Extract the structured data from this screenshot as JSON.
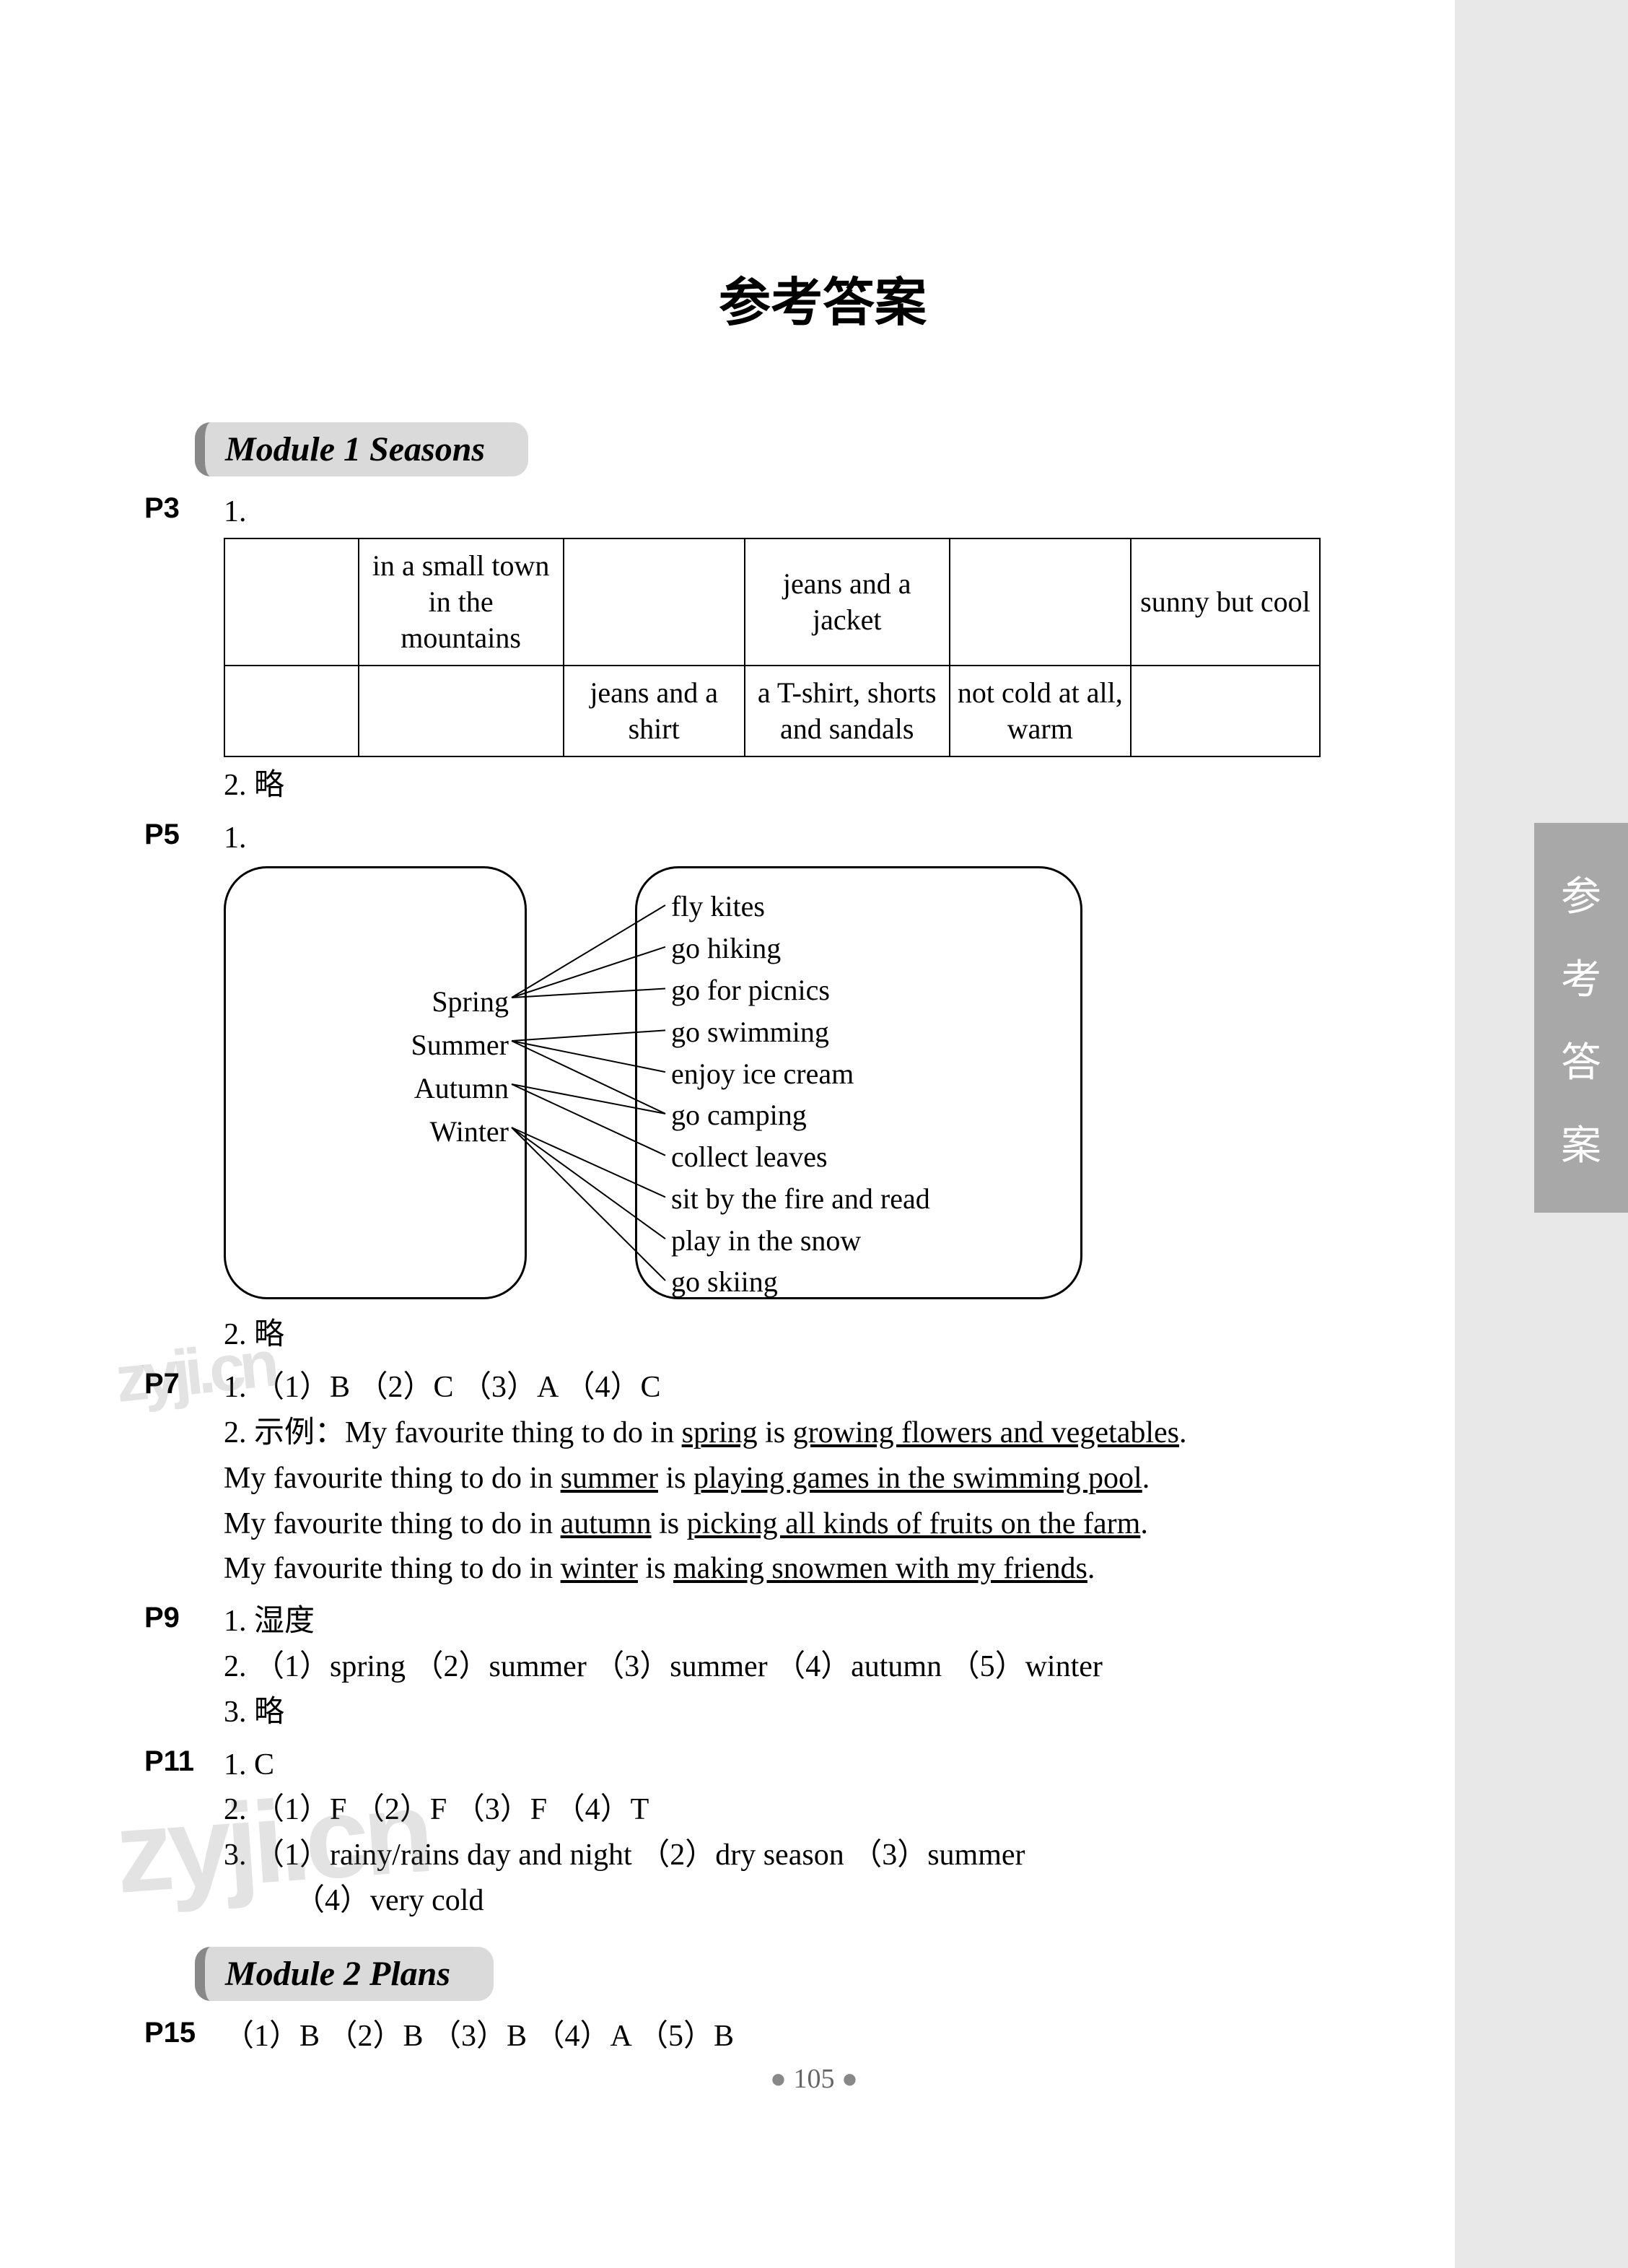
{
  "page_title": "参考答案",
  "side_tab": [
    "参",
    "考",
    "答",
    "案"
  ],
  "module1": {
    "header": "Module 1    Seasons",
    "p3": {
      "label": "P3",
      "q1_num": "1.",
      "table_row1": [
        "",
        "in a small town in the mountains",
        "",
        "jeans and a jacket",
        "",
        "sunny but cool"
      ],
      "table_row2": [
        "",
        "",
        "jeans and a shirt",
        "a T-shirt, shorts and sandals",
        "not cold at all, warm",
        ""
      ],
      "q2": "2.  略"
    },
    "p5": {
      "label": "P5",
      "q1_num": "1.",
      "left_items": [
        "Spring",
        "Summer",
        "Autumn",
        "Winter"
      ],
      "right_items": [
        "fly kites",
        "go hiking",
        "go for picnics",
        "go swimming",
        "enjoy ice cream",
        "go camping",
        "collect leaves",
        "sit by the fire and read",
        "play in the snow",
        "go skiing"
      ],
      "edges": [
        [
          0,
          0
        ],
        [
          0,
          1
        ],
        [
          0,
          2
        ],
        [
          1,
          3
        ],
        [
          1,
          4
        ],
        [
          1,
          5
        ],
        [
          2,
          5
        ],
        [
          2,
          6
        ],
        [
          3,
          7
        ],
        [
          3,
          8
        ],
        [
          3,
          9
        ]
      ],
      "q2": "2.  略"
    },
    "p7": {
      "label": "P7",
      "q1": "1.  （1）B    （2）C    （3）A    （4）C",
      "q2_prefix": "2.  示例：",
      "q2_l1_a": "My favourite thing to do in ",
      "q2_l1_b": "spring",
      "q2_l1_c": " is ",
      "q2_l1_d": "growing flowers and vegetables",
      "q2_l1_e": ".",
      "q2_l2_a": "My favourite thing to do in ",
      "q2_l2_b": "summer",
      "q2_l2_c": " is ",
      "q2_l2_d": "playing games in the swimming pool",
      "q2_l2_e": ".",
      "q2_l3_a": "My favourite thing to do in ",
      "q2_l3_b": "autumn",
      "q2_l3_c": " is ",
      "q2_l3_d": "picking all kinds of fruits on the farm",
      "q2_l3_e": ".",
      "q2_l4_a": "My favourite thing to do in ",
      "q2_l4_b": "winter",
      "q2_l4_c": " is ",
      "q2_l4_d": "making snowmen with my friends",
      "q2_l4_e": "."
    },
    "p9": {
      "label": "P9",
      "q1": "1.  湿度",
      "q2": "2.  （1）spring    （2）summer    （3）summer    （4）autumn    （5）winter",
      "q3": "3.  略"
    },
    "p11": {
      "label": "P11",
      "q1": "1.  C",
      "q2": "2.  （1）F    （2）F    （3）F    （4）T",
      "q3_main": "3.  （1）rainy/rains day and night    （2）dry season    （3）summer",
      "q3_cont": "（4）very cold"
    }
  },
  "module2": {
    "header": "Module 2    Plans",
    "p15": {
      "label": "P15",
      "q1": "（1）B    （2）B    （3）B    （4）A    （5）B"
    }
  },
  "page_number": "105",
  "watermarks": {
    "w1": "zyji.cn",
    "w2": "zyji.cn"
  }
}
